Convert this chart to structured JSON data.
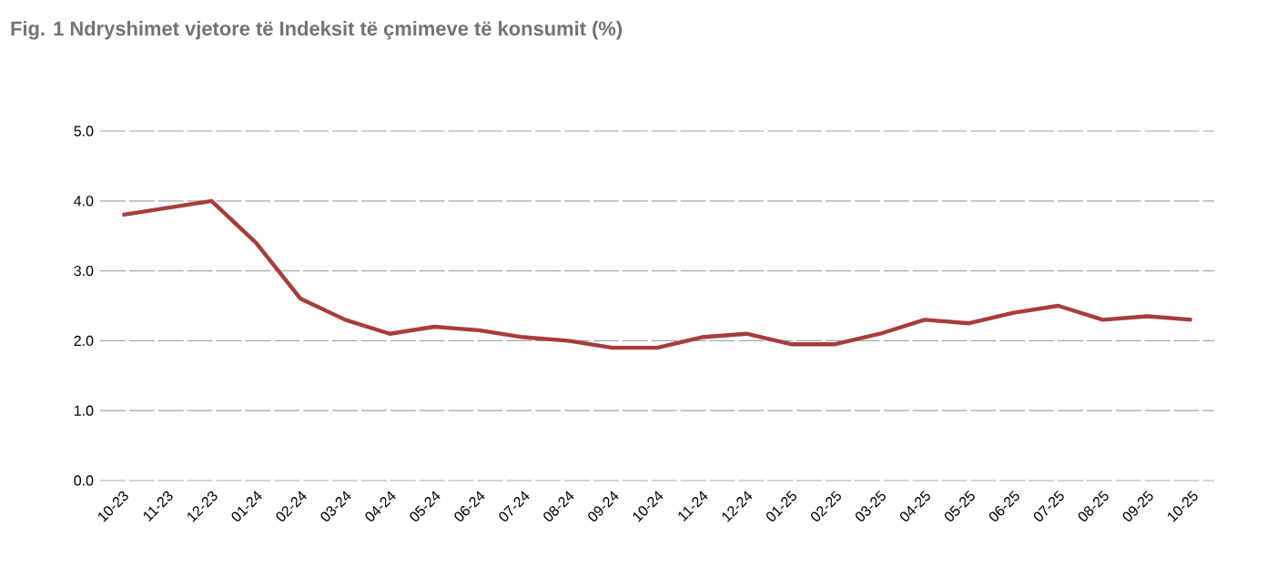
{
  "chart_data": {
    "type": "line",
    "title": "Fig. 1 Ndryshimet vjetore të Indeksit të çmimeve të konsumit  (%)",
    "categories": [
      "10-23",
      "11-23",
      "12-23",
      "01-24",
      "02-24",
      "03-24",
      "04-24",
      "05-24",
      "06-24",
      "07-24",
      "08-24",
      "09-24",
      "10-24",
      "11-24",
      "12-24",
      "01-25",
      "02-25",
      "03-25",
      "04-25",
      "05-25",
      "06-25",
      "07-25",
      "08-25",
      "09-25",
      "10-25"
    ],
    "series": [
      {
        "color": "#a83c3c",
        "values": [
          3.8,
          3.9,
          4.0,
          3.4,
          2.6,
          2.3,
          2.1,
          2.2,
          2.15,
          2.05,
          2.0,
          1.9,
          1.9,
          2.05,
          2.1,
          1.95,
          1.95,
          2.1,
          2.3,
          2.25,
          2.4,
          2.5,
          2.3,
          2.35,
          2.3
        ]
      }
    ],
    "ylim": [
      0,
      5
    ],
    "yticks": [
      {
        "value": 0,
        "label": "0.0"
      },
      {
        "value": 1,
        "label": "1.0"
      },
      {
        "value": 2,
        "label": "2.0"
      },
      {
        "value": 3,
        "label": "3.0"
      },
      {
        "value": 4,
        "label": "4.0"
      },
      {
        "value": 5,
        "label": "5.0"
      }
    ],
    "grid": "y",
    "marker": "none",
    "line_style": "solid"
  }
}
